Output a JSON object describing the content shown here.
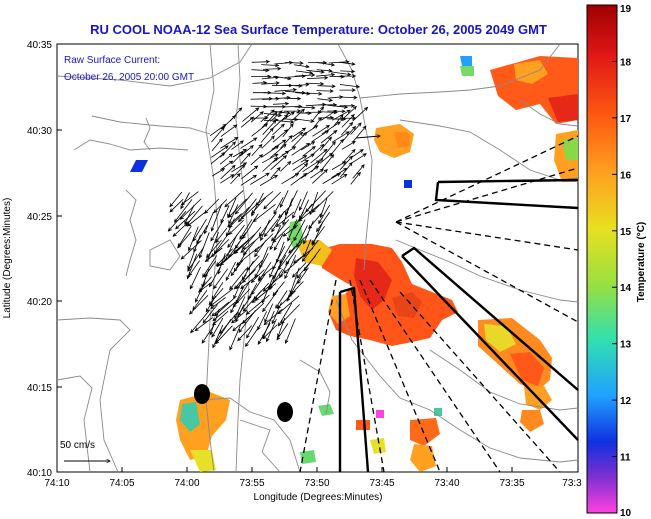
{
  "title": "RU COOL  NOAA-12  Sea Surface Temperature:  October 26, 2005 2049 GMT",
  "current": {
    "label": "Raw Surface Current:",
    "time": "October 26, 2005 20:00 GMT",
    "scale_label": "50 cm/s"
  },
  "axes": {
    "xlabel": "Longitude (Degrees:Minutes)",
    "ylabel": "Latitude (Degrees:Minutes)",
    "x_ticks": [
      "74:10",
      "74:05",
      "74:00",
      "73:55",
      "73:50",
      "73:45",
      "73:40",
      "73:35",
      "73:3"
    ],
    "y_ticks": [
      "40:35",
      "40:30",
      "40:25",
      "40:20",
      "40:15",
      "40:10"
    ]
  },
  "colorbar": {
    "label": "Temperature (°C)",
    "ticks": [
      "19",
      "18",
      "17",
      "16",
      "15",
      "14",
      "13",
      "12",
      "11",
      "10"
    ],
    "min": 10,
    "max": 19
  },
  "colors": {
    "title": "#1616c8",
    "annotation": "#1616c8"
  }
}
